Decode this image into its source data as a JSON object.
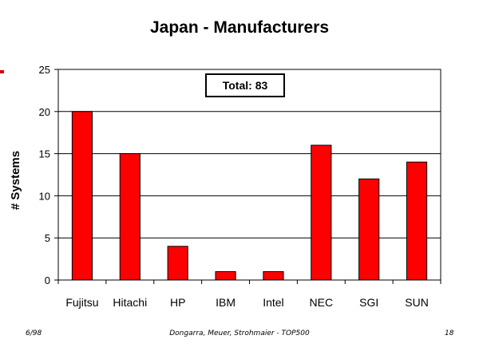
{
  "chart_data": {
    "type": "bar",
    "title": "Japan - Manufacturers",
    "ylabel": "# Systems",
    "xlabel": "",
    "categories": [
      "Fujitsu",
      "Hitachi",
      "HP",
      "IBM",
      "Intel",
      "NEC",
      "SGI",
      "SUN"
    ],
    "values": [
      20,
      15,
      4,
      1,
      1,
      16,
      12,
      14
    ],
    "ylim": [
      0,
      25
    ],
    "yticks": [
      "0",
      "5",
      "10",
      "15",
      "20",
      "25"
    ],
    "grid": true,
    "annotation": "Total: 83",
    "bar_color": "#ff0000"
  },
  "footer": {
    "left": "6/98",
    "center": "Dongarra, Meuer, Strohmaier - TOP500",
    "right": "18"
  },
  "accent_color": "#cc0000"
}
